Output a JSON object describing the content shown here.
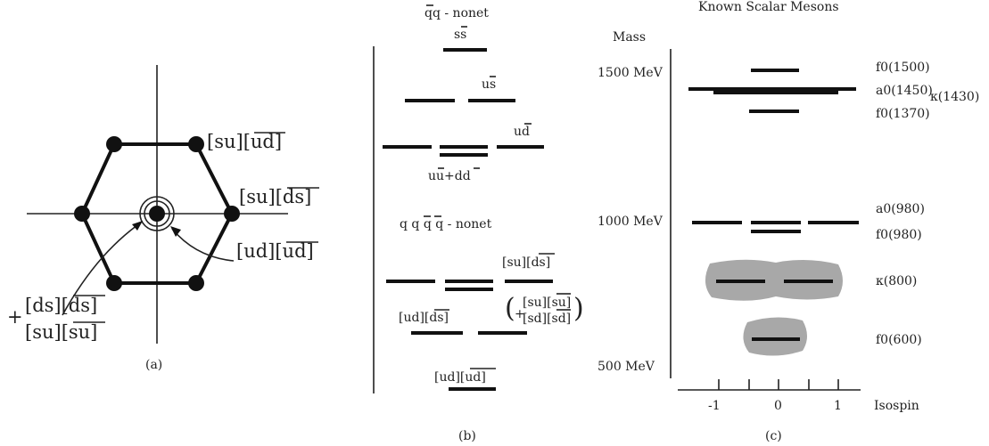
{
  "panel_a": {
    "caption": "(a)",
    "label_top": "[su][ud]",
    "label_right": "[su][ds]",
    "label_center": "[ud][ud]",
    "label_left_plus": "+",
    "label_left_1": "[ds][ds]",
    "label_left_2": "[su][su]"
  },
  "panel_b": {
    "caption": "(b)",
    "title_qq": "qq - nonet",
    "label_ss": "ss",
    "label_us": "us",
    "label_ud": "ud",
    "label_uudd": "uu+dd",
    "title_qqqq": "q q q q - nonet",
    "label_su_ds": "[su][ds]",
    "label_ud_ds": "[ud][ds]",
    "label_paren_plus": "+",
    "label_su_su": "[su][su]",
    "label_sd_sd": "[sd][sd]",
    "label_ud_ud": "[ud][ud]"
  },
  "panel_c": {
    "caption": "(c)",
    "title": "Known Scalar Mesons",
    "mass_label": "Mass",
    "mass_1500": "1500 MeV",
    "mass_1000": "1000 MeV",
    "mass_500": "500 MeV",
    "isospin_label": "Isospin",
    "ticks": [
      "-1",
      "0",
      "1"
    ],
    "f0_1500": "f0(1500)",
    "a0_1450": "a0(1450)",
    "kappa_1430": "κ(1430)",
    "f0_1370": "f0(1370)",
    "a0_980": "a0(980)",
    "f0_980": "f0(980)",
    "kappa_800": "κ(800)",
    "f0_600": "f0(600)",
    "blob_color": "#a8a8a8"
  }
}
